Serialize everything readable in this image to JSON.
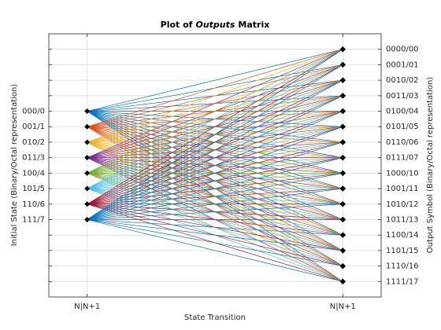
{
  "chart_data": {
    "type": "trellis",
    "title": [
      "Plot of",
      "Outputs",
      "Matrix"
    ],
    "xlabel": "State Transition",
    "ylabel": "Initial State (Binary/Octal representation)",
    "y2label": "Output Symbol (Binary/Octal representation)",
    "xlim": [
      0.85,
      2.15
    ],
    "xticks": [
      {
        "value": 1,
        "label": "N|N+1"
      },
      {
        "value": 2,
        "label": "N|N+1"
      }
    ],
    "ylim": [
      -5,
      12
    ],
    "y_reversed": true,
    "yticks": [
      {
        "value": 0,
        "label": "000/0"
      },
      {
        "value": 1,
        "label": "001/1"
      },
      {
        "value": 2,
        "label": "010/2"
      },
      {
        "value": 3,
        "label": "011/3"
      },
      {
        "value": 4,
        "label": "100/4"
      },
      {
        "value": 5,
        "label": "101/5"
      },
      {
        "value": 6,
        "label": "110/6"
      },
      {
        "value": 7,
        "label": "111/7"
      }
    ],
    "yminorticks": [
      -4,
      -3,
      -2,
      -1,
      8,
      9,
      10,
      11
    ],
    "y2lim": [
      -1,
      16
    ],
    "y2ticks": [
      {
        "value": 0,
        "label": "0000/00"
      },
      {
        "value": 1,
        "label": "0001/01"
      },
      {
        "value": 2,
        "label": "0010/02"
      },
      {
        "value": 3,
        "label": "0011/03"
      },
      {
        "value": 4,
        "label": "0100/04"
      },
      {
        "value": 5,
        "label": "0101/05"
      },
      {
        "value": 6,
        "label": "0110/06"
      },
      {
        "value": 7,
        "label": "0111/07"
      },
      {
        "value": 8,
        "label": "1000/10"
      },
      {
        "value": 9,
        "label": "1001/11"
      },
      {
        "value": 10,
        "label": "1010/12"
      },
      {
        "value": 11,
        "label": "1011/13"
      },
      {
        "value": 12,
        "label": "1100/14"
      },
      {
        "value": 13,
        "label": "1101/15"
      },
      {
        "value": 14,
        "label": "1110/16"
      },
      {
        "value": 15,
        "label": "1111/17"
      }
    ],
    "grid": true,
    "marker_color": "#000000",
    "series": [
      {
        "color": "#0072BD",
        "from": 0,
        "to": [
          0,
          1,
          2,
          3,
          4,
          5,
          6,
          7,
          8,
          9,
          10,
          11,
          12,
          13,
          14,
          15
        ]
      },
      {
        "color": "#D95319",
        "from": 1,
        "to": [
          0,
          1,
          2,
          3,
          4,
          5,
          6,
          7,
          8,
          9,
          10,
          11,
          12,
          13,
          14,
          15
        ]
      },
      {
        "color": "#EDB120",
        "from": 2,
        "to": [
          0,
          1,
          2,
          3,
          4,
          5,
          6,
          7,
          8,
          9,
          10,
          11,
          12,
          13,
          14,
          15
        ]
      },
      {
        "color": "#7E2F8E",
        "from": 3,
        "to": [
          0,
          1,
          2,
          3,
          4,
          5,
          6,
          7,
          8,
          9,
          10,
          11,
          12,
          13,
          14,
          15
        ]
      },
      {
        "color": "#77AC30",
        "from": 4,
        "to": [
          0,
          1,
          2,
          3,
          4,
          5,
          6,
          7,
          8,
          9,
          10,
          11,
          12,
          13,
          14,
          15
        ]
      },
      {
        "color": "#4DBEEE",
        "from": 5,
        "to": [
          0,
          1,
          2,
          3,
          4,
          5,
          6,
          7,
          8,
          9,
          10,
          11,
          12,
          13,
          14,
          15
        ]
      },
      {
        "color": "#A2142F",
        "from": 6,
        "to": [
          0,
          1,
          2,
          3,
          4,
          5,
          6,
          7,
          8,
          9,
          10,
          11,
          12,
          13,
          14,
          15
        ]
      },
      {
        "color": "#0072BD",
        "from": 7,
        "to": [
          0,
          1,
          2,
          3,
          4,
          5,
          6,
          7,
          8,
          9,
          10,
          11,
          12,
          13,
          14,
          15
        ]
      }
    ]
  }
}
